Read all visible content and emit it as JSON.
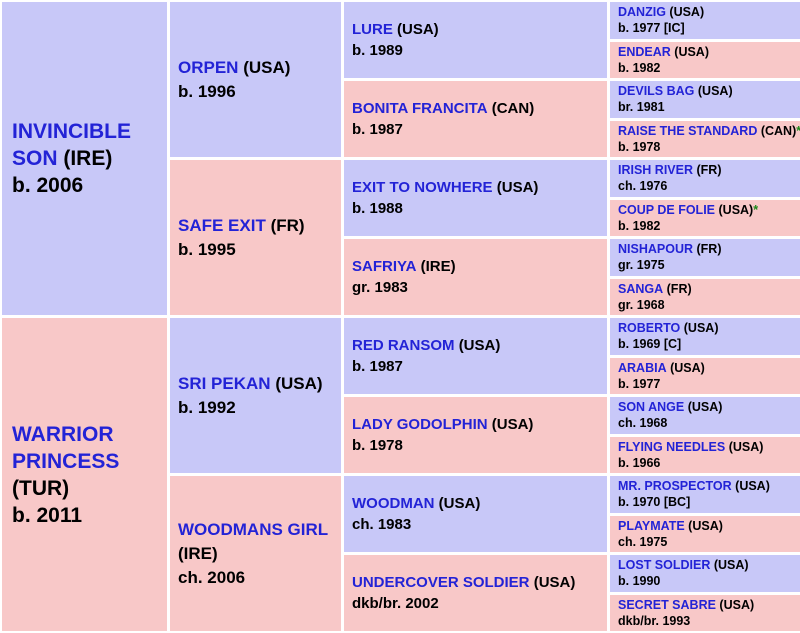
{
  "pedigree": {
    "sire": {
      "name": "INVINCIBLE SON",
      "country": "(IRE)",
      "born": "b. 2006"
    },
    "dam": {
      "name": "WARRIOR PRINCESS",
      "country": "(TUR)",
      "born": "b. 2011"
    },
    "gen2": [
      {
        "name": "ORPEN",
        "country": "(USA)",
        "born": "b. 1996"
      },
      {
        "name": "SAFE EXIT",
        "country": "(FR)",
        "born": "b. 1995"
      },
      {
        "name": "SRI PEKAN",
        "country": "(USA)",
        "born": "b. 1992"
      },
      {
        "name": "WOODMANS GIRL",
        "country": "(IRE)",
        "born": "ch. 2006"
      }
    ],
    "gen3": [
      {
        "name": "LURE",
        "country": "(USA)",
        "born": "b. 1989"
      },
      {
        "name": "BONITA FRANCITA",
        "country": "(CAN)",
        "born": "b. 1987"
      },
      {
        "name": "EXIT TO NOWHERE",
        "country": "(USA)",
        "born": "b. 1988"
      },
      {
        "name": "SAFRIYA",
        "country": "(IRE)",
        "born": "gr. 1983"
      },
      {
        "name": "RED RANSOM",
        "country": "(USA)",
        "born": "b. 1987"
      },
      {
        "name": "LADY GODOLPHIN",
        "country": "(USA)",
        "born": "b. 1978"
      },
      {
        "name": "WOODMAN",
        "country": "(USA)",
        "born": "ch. 1983"
      },
      {
        "name": "UNDERCOVER SOLDIER",
        "country": "(USA)",
        "born": "dkb/br. 2002"
      }
    ],
    "gen4": [
      {
        "name": "DANZIG",
        "country": "(USA)",
        "born": "b. 1977 [IC]",
        "star": ""
      },
      {
        "name": "ENDEAR",
        "country": "(USA)",
        "born": "b. 1982",
        "star": ""
      },
      {
        "name": "DEVILS BAG",
        "country": "(USA)",
        "born": "br. 1981",
        "star": ""
      },
      {
        "name": "RAISE THE STANDARD",
        "country": "(CAN)",
        "born": "b. 1978",
        "star": "*"
      },
      {
        "name": "IRISH RIVER",
        "country": "(FR)",
        "born": "ch. 1976",
        "star": ""
      },
      {
        "name": "COUP DE FOLIE",
        "country": "(USA)",
        "born": "b. 1982",
        "star": "*"
      },
      {
        "name": "NISHAPOUR",
        "country": "(FR)",
        "born": "gr. 1975",
        "star": ""
      },
      {
        "name": "SANGA",
        "country": "(FR)",
        "born": "gr. 1968",
        "star": ""
      },
      {
        "name": "ROBERTO",
        "country": "(USA)",
        "born": "b. 1969 [C]",
        "star": ""
      },
      {
        "name": "ARABIA",
        "country": "(USA)",
        "born": "b. 1977",
        "star": ""
      },
      {
        "name": "SON ANGE",
        "country": "(USA)",
        "born": "ch. 1968",
        "star": ""
      },
      {
        "name": "FLYING NEEDLES",
        "country": "(USA)",
        "born": "b. 1966",
        "star": ""
      },
      {
        "name": "MR. PROSPECTOR",
        "country": "(USA)",
        "born": "b. 1970 [BC]",
        "star": ""
      },
      {
        "name": "PLAYMATE",
        "country": "(USA)",
        "born": "ch. 1975",
        "star": ""
      },
      {
        "name": "LOST SOLDIER",
        "country": "(USA)",
        "born": "b. 1990",
        "star": ""
      },
      {
        "name": "SECRET SABRE",
        "country": "(USA)",
        "born": "dkb/br. 1993",
        "star": ""
      }
    ]
  },
  "colors": {
    "male": "#c8c8f8",
    "female": "#f8c8c8",
    "name": "#2323d6",
    "star": "#1a8a1a"
  }
}
